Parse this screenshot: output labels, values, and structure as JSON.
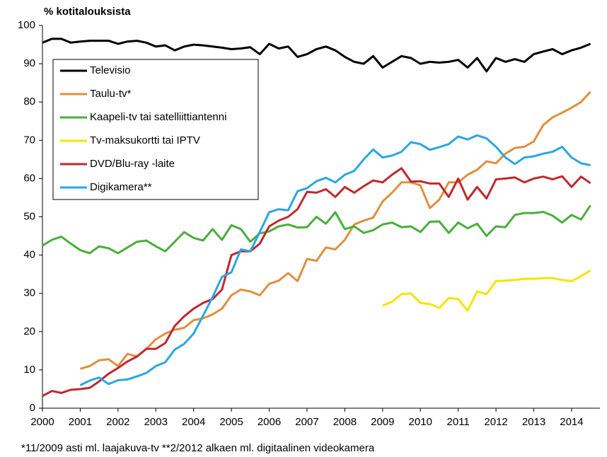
{
  "chart_data": {
    "type": "line",
    "title": "% kotitalouksista",
    "footnote": "*11/2009 asti ml. laajakuva-tv  **2/2012 alkaen ml. digitaalinen videokamera",
    "x": [
      2000,
      2000.25,
      2000.5,
      2000.75,
      2001,
      2001.25,
      2001.5,
      2001.75,
      2002,
      2002.25,
      2002.5,
      2002.75,
      2003,
      2003.25,
      2003.5,
      2003.75,
      2004,
      2004.25,
      2004.5,
      2004.75,
      2005,
      2005.25,
      2005.5,
      2005.75,
      2006,
      2006.25,
      2006.5,
      2006.75,
      2007,
      2007.25,
      2007.5,
      2007.75,
      2008,
      2008.25,
      2008.5,
      2008.75,
      2009,
      2009.25,
      2009.5,
      2009.75,
      2010,
      2010.25,
      2010.5,
      2010.75,
      2011,
      2011.25,
      2011.5,
      2011.75,
      2012,
      2012.25,
      2012.5,
      2012.75,
      2013,
      2013.25,
      2013.5,
      2013.75,
      2014,
      2014.25,
      2014.5
    ],
    "xlim": [
      2000,
      2014.75
    ],
    "xticks": [
      2000,
      2001,
      2002,
      2003,
      2004,
      2005,
      2006,
      2007,
      2008,
      2009,
      2010,
      2011,
      2012,
      2013,
      2014
    ],
    "ylim": [
      0,
      100
    ],
    "yticks": [
      0,
      10,
      20,
      30,
      40,
      50,
      60,
      70,
      80,
      90,
      100
    ],
    "series": [
      {
        "name": "Televisio",
        "color": "#000000",
        "values": [
          95.5,
          96.5,
          96.5,
          95.5,
          95.8,
          96,
          96,
          96,
          95.2,
          95.8,
          96,
          95.5,
          94.5,
          94.8,
          93.5,
          94.5,
          95,
          94.8,
          94.5,
          94.2,
          93.8,
          94,
          94.3,
          92.5,
          95.2,
          94,
          94.5,
          91.8,
          92.5,
          93.8,
          94.5,
          93.5,
          91.8,
          90.5,
          90,
          92,
          89,
          90.5,
          92,
          91.5,
          90,
          90.5,
          90.3,
          90.5,
          91,
          89,
          91.5,
          88,
          91.5,
          90.5,
          91.2,
          90.5,
          92.5,
          93.2,
          93.8,
          92.5,
          93.5,
          94.2,
          95.2
        ]
      },
      {
        "name": "Taulu-tv*",
        "color": "#e08f3e",
        "values": [
          null,
          null,
          null,
          null,
          10.3,
          11,
          12.5,
          12.8,
          11,
          14.2,
          13.5,
          15.5,
          18,
          19.5,
          20.5,
          21,
          23,
          23.5,
          24.5,
          26,
          29.5,
          31,
          30.5,
          29.5,
          32.5,
          33.3,
          35.3,
          33.2,
          39,
          38.5,
          42,
          41.5,
          44,
          48,
          49,
          49.8,
          54,
          56.3,
          59,
          59,
          58.2,
          52.3,
          54.5,
          59,
          59,
          61,
          62.3,
          64.5,
          64,
          66.5,
          68,
          68.3,
          69.7,
          74,
          76,
          77.2,
          78.5,
          80,
          82.7
        ]
      },
      {
        "name": "Kaapeli-tv tai satelliittiantenni",
        "color": "#4aae3c",
        "values": [
          42.5,
          44,
          44.8,
          43,
          41.3,
          40.5,
          42.3,
          41.8,
          40.5,
          42,
          43.5,
          43.8,
          42.3,
          41,
          43.5,
          46,
          44.5,
          43.8,
          46.8,
          44,
          47.8,
          46.8,
          43.5,
          45.7,
          46.2,
          47.5,
          48,
          47.2,
          47.3,
          50,
          48.2,
          51.2,
          46.8,
          47.5,
          45.8,
          46.5,
          48,
          48.5,
          47.3,
          47.5,
          46,
          48.7,
          48.8,
          45.8,
          48.5,
          47,
          48.2,
          45,
          47.5,
          47.3,
          50.5,
          51,
          51,
          51.3,
          50.3,
          48.5,
          50.5,
          49.3,
          53
        ]
      },
      {
        "name": "Tv-maksukortti tai IPTV",
        "color": "#f2e600",
        "values": [
          null,
          null,
          null,
          null,
          null,
          null,
          null,
          null,
          null,
          null,
          null,
          null,
          null,
          null,
          null,
          null,
          null,
          null,
          null,
          null,
          null,
          null,
          null,
          null,
          null,
          null,
          null,
          null,
          null,
          null,
          null,
          null,
          null,
          null,
          null,
          null,
          26.8,
          27.8,
          29.8,
          30,
          27.5,
          27.2,
          26.2,
          28.8,
          28.5,
          25.5,
          30.5,
          29.8,
          33.2,
          33.3,
          33.5,
          33.8,
          33.8,
          34,
          34,
          33.5,
          33.2,
          34.5,
          36
        ]
      },
      {
        "name": "DVD/Blu-ray -laite",
        "color": "#c0282e",
        "values": [
          3.2,
          4.5,
          4,
          4.8,
          5,
          5.3,
          7,
          9,
          10.5,
          12.2,
          13.5,
          15.5,
          15.5,
          17,
          21.5,
          24,
          26,
          27.5,
          28.5,
          31,
          40,
          41,
          41,
          43,
          47.5,
          49,
          50,
          52,
          56.5,
          56.3,
          57.2,
          55.2,
          57.8,
          56.3,
          58,
          59.5,
          59,
          61,
          62.7,
          59.2,
          59.3,
          58.7,
          58.7,
          55.2,
          60,
          54.5,
          57.8,
          54.8,
          59.8,
          60,
          60.3,
          59,
          60,
          60.5,
          59.8,
          60.6,
          57.8,
          60.5,
          58.8
        ]
      },
      {
        "name": "Digikamera**",
        "color": "#2aa7df",
        "values": [
          null,
          null,
          null,
          null,
          6,
          7.2,
          8,
          6.3,
          7.3,
          7.5,
          8.3,
          9.2,
          11,
          12,
          15.3,
          16.8,
          19.5,
          24.2,
          29,
          34.3,
          35.5,
          41.5,
          41,
          46,
          51.2,
          52,
          51.7,
          56.7,
          57.5,
          59.3,
          60.2,
          59,
          61,
          62,
          65,
          67.6,
          65.5,
          66,
          67,
          69.5,
          69,
          67.5,
          68.2,
          69,
          71,
          70.2,
          71.3,
          70.5,
          68.3,
          65.5,
          63.8,
          65.5,
          65.8,
          66.5,
          67,
          68.3,
          65.5,
          64,
          63.5
        ]
      }
    ],
    "legend": "upper-left",
    "grid": false
  }
}
